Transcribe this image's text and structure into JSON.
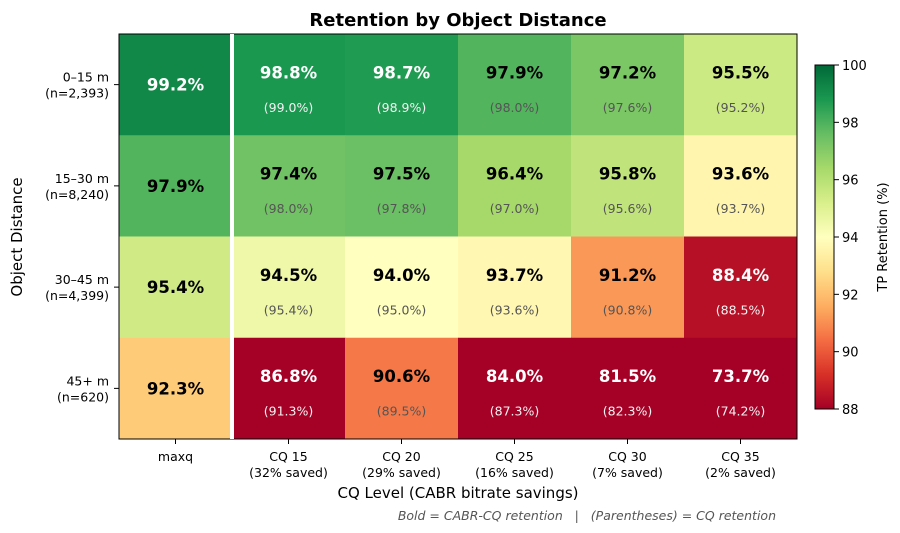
{
  "chart_data": {
    "type": "heatmap",
    "title": "Retention by Object Distance",
    "xlabel": "CQ Level (CABR bitrate savings)",
    "ylabel": "Object Distance",
    "footnote": "Bold = CABR-CQ retention   |   (Parentheses) = CQ retention",
    "columns": [
      {
        "line1": "maxq",
        "line2": ""
      },
      {
        "line1": "CQ 15",
        "line2": "(32% saved)"
      },
      {
        "line1": "CQ 20",
        "line2": "(29% saved)"
      },
      {
        "line1": "CQ 25",
        "line2": "(16% saved)"
      },
      {
        "line1": "CQ 30",
        "line2": "(7% saved)"
      },
      {
        "line1": "CQ 35",
        "line2": "(2% saved)"
      }
    ],
    "rows": [
      {
        "line1": "0–15 m",
        "line2": "(n=2,393)"
      },
      {
        "line1": "15–30 m",
        "line2": "(n=8,240)"
      },
      {
        "line1": "30–45 m",
        "line2": "(n=4,399)"
      },
      {
        "line1": "45+ m",
        "line2": "(n=620)"
      }
    ],
    "cabr_cq_retention": [
      [
        99.2,
        98.8,
        98.7,
        97.9,
        97.2,
        95.5
      ],
      [
        97.9,
        97.4,
        97.5,
        96.4,
        95.8,
        93.6
      ],
      [
        95.4,
        94.5,
        94.0,
        93.7,
        91.2,
        88.4
      ],
      [
        92.3,
        86.8,
        90.6,
        84.0,
        81.5,
        73.7
      ]
    ],
    "cq_retention": [
      [
        null,
        99.0,
        98.9,
        98.0,
        97.6,
        95.2
      ],
      [
        null,
        98.0,
        97.8,
        97.0,
        95.6,
        93.7
      ],
      [
        null,
        95.4,
        95.0,
        93.6,
        90.8,
        88.5
      ],
      [
        null,
        91.3,
        89.5,
        87.3,
        82.3,
        74.2
      ]
    ],
    "colorbar": {
      "label": "TP Retention (%)",
      "min": 88,
      "max": 100,
      "ticks": [
        88,
        90,
        92,
        94,
        96,
        98,
        100
      ],
      "colormap": "RdYlGn"
    }
  }
}
